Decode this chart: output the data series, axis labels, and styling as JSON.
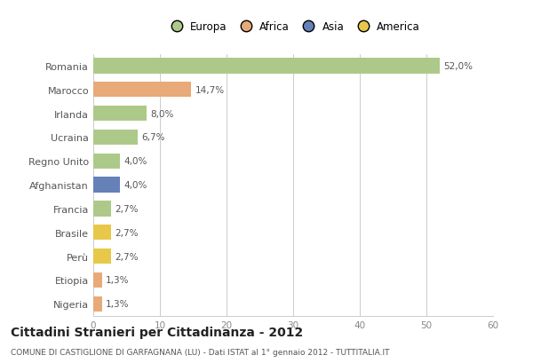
{
  "countries": [
    "Romania",
    "Marocco",
    "Irlanda",
    "Ucraina",
    "Regno Unito",
    "Afghanistan",
    "Francia",
    "Brasile",
    "Perù",
    "Etiopia",
    "Nigeria"
  ],
  "values": [
    52.0,
    14.7,
    8.0,
    6.7,
    4.0,
    4.0,
    2.7,
    2.7,
    2.7,
    1.3,
    1.3
  ],
  "labels": [
    "52,0%",
    "14,7%",
    "8,0%",
    "6,7%",
    "4,0%",
    "4,0%",
    "2,7%",
    "2,7%",
    "2,7%",
    "1,3%",
    "1,3%"
  ],
  "categories": [
    "Europa",
    "Africa",
    "Asia",
    "America"
  ],
  "bar_colors": [
    "#adc98a",
    "#e8aa78",
    "#adc98a",
    "#adc98a",
    "#adc98a",
    "#6680b8",
    "#adc98a",
    "#e8c84a",
    "#e8c84a",
    "#e8aa78",
    "#e8aa78"
  ],
  "legend_colors": [
    "#adc98a",
    "#e8aa78",
    "#6680b8",
    "#e8c84a"
  ],
  "title": "Cittadini Stranieri per Cittadinanza - 2012",
  "subtitle": "COMUNE DI CASTIGLIONE DI GARFAGNANA (LU) - Dati ISTAT al 1° gennaio 2012 - TUTTITALIA.IT",
  "xlim": [
    0,
    60
  ],
  "xticks": [
    0,
    10,
    20,
    30,
    40,
    50,
    60
  ],
  "bg_color": "#ffffff",
  "grid_color": "#cccccc"
}
